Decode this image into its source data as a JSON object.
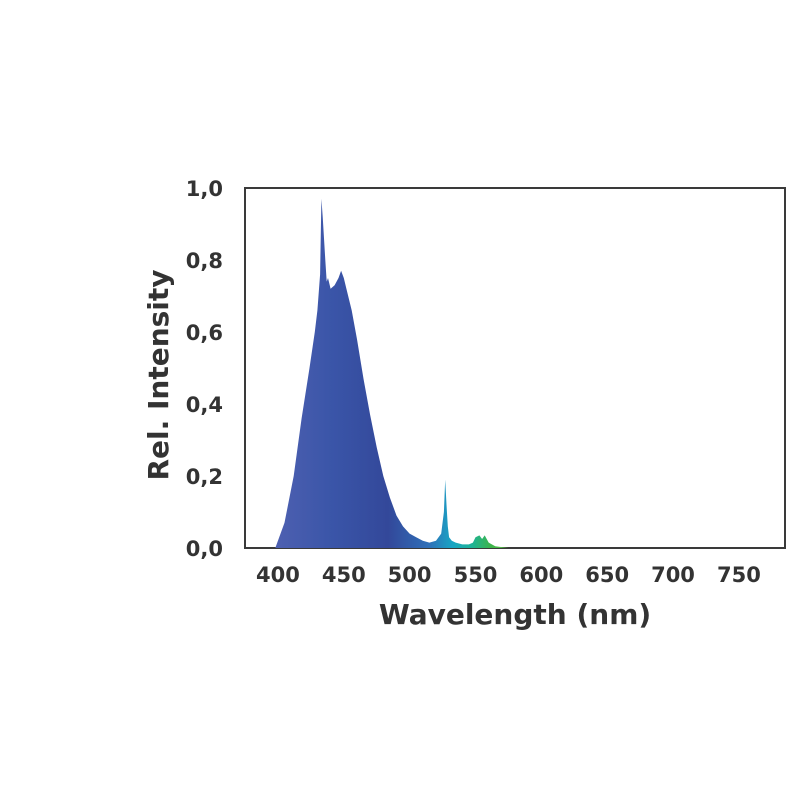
{
  "chart_data": {
    "type": "area",
    "title": "",
    "xlabel": "Wavelength (nm)",
    "ylabel": "Rel. Intensity",
    "xlim": [
      375,
      785
    ],
    "ylim": [
      0,
      1.0
    ],
    "x_ticks": [
      400,
      450,
      500,
      550,
      600,
      650,
      700,
      750
    ],
    "y_ticks": [
      0,
      0.2,
      0.4,
      0.6,
      0.8,
      1.0
    ],
    "y_tick_labels": [
      "0,0",
      "0,2",
      "0,4",
      "0,6",
      "0,8",
      "1,0"
    ],
    "grid": false,
    "legend": "none",
    "series": [
      {
        "x": [
          398,
          405,
          412,
          418,
          424,
          428,
          430,
          432,
          433,
          434,
          436,
          437,
          438,
          440,
          443,
          446,
          448,
          450,
          452,
          456,
          460,
          465,
          470,
          475,
          480,
          485,
          490,
          495,
          500,
          505,
          510,
          515,
          520,
          524,
          526,
          527,
          528,
          529,
          530,
          532,
          535,
          540,
          545,
          548,
          550,
          553,
          555,
          557,
          560,
          565,
          575
        ],
        "values": [
          0.0,
          0.07,
          0.2,
          0.36,
          0.5,
          0.6,
          0.66,
          0.76,
          0.97,
          0.92,
          0.8,
          0.74,
          0.75,
          0.72,
          0.73,
          0.75,
          0.77,
          0.75,
          0.72,
          0.66,
          0.58,
          0.47,
          0.37,
          0.28,
          0.2,
          0.14,
          0.09,
          0.06,
          0.04,
          0.03,
          0.02,
          0.015,
          0.02,
          0.04,
          0.1,
          0.19,
          0.12,
          0.06,
          0.03,
          0.02,
          0.015,
          0.01,
          0.01,
          0.015,
          0.03,
          0.035,
          0.025,
          0.035,
          0.015,
          0.005,
          0.0
        ]
      }
    ]
  }
}
